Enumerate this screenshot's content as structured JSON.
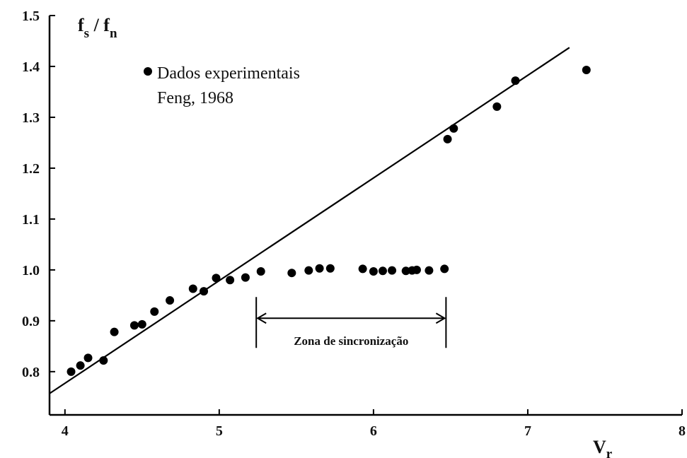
{
  "chart_data": {
    "type": "scatter",
    "title": "",
    "ylabel": "f_s / f_n",
    "xlabel": "V_r",
    "xlim": [
      3.9,
      8.0
    ],
    "ylim": [
      0.715,
      1.5
    ],
    "x_ticks": [
      4,
      5,
      6,
      7,
      8
    ],
    "y_ticks": [
      0.8,
      0.9,
      1.0,
      1.1,
      1.2,
      1.3,
      1.4,
      1.5
    ],
    "x_tick_labels": [
      "4",
      "5",
      "6",
      "7",
      "8"
    ],
    "y_tick_labels": [
      "0.8",
      "0.9",
      "1.0",
      "1.1",
      "1.2",
      "1.3",
      "1.4",
      "1.5"
    ],
    "grid": false,
    "legend": {
      "placement": "top-left",
      "label_line1": "Dados experimentais",
      "label_line2": "Feng, 1968"
    },
    "series": [
      {
        "name": "Dados experimentais Feng, 1968",
        "kind": "scatter",
        "x": [
          4.04,
          4.1,
          4.15,
          4.25,
          4.32,
          4.45,
          4.5,
          4.58,
          4.68,
          4.83,
          4.9,
          4.98,
          5.07,
          5.17,
          5.27,
          5.47,
          5.58,
          5.65,
          5.72,
          5.93,
          6.0,
          6.06,
          6.12,
          6.21,
          6.25,
          6.28,
          6.36,
          6.46,
          6.48,
          6.52,
          6.8,
          6.92,
          7.38
        ],
        "y": [
          0.8,
          0.812,
          0.827,
          0.822,
          0.878,
          0.891,
          0.893,
          0.918,
          0.94,
          0.963,
          0.958,
          0.984,
          0.98,
          0.985,
          0.997,
          0.994,
          0.999,
          1.003,
          1.003,
          1.002,
          0.997,
          0.998,
          0.999,
          0.998,
          0.999,
          1.0,
          0.999,
          1.002,
          1.257,
          1.278,
          1.321,
          1.372,
          1.393
        ]
      },
      {
        "name": "",
        "kind": "line",
        "x": [
          3.9,
          7.27
        ],
        "y": [
          0.757,
          1.437
        ]
      }
    ],
    "annotations": [
      {
        "text": "Zona de sincronização",
        "type": "double-arrow",
        "x_range": [
          5.24,
          6.47
        ],
        "y": 0.905
      }
    ],
    "colors": {
      "marker": "#000000",
      "line": "#000000",
      "axes": "#000000"
    }
  }
}
